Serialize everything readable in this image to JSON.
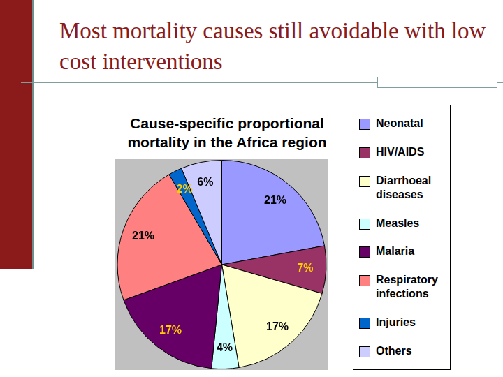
{
  "header": {
    "title": "Most mortality causes still avoidable with low cost interventions"
  },
  "chart_data": {
    "type": "pie",
    "title": "Cause-specific proportional mortality in the Africa region",
    "categories": [
      "Neonatal",
      "HIV/AIDS",
      "Diarrhoeal diseases",
      "Measles",
      "Malaria",
      "Respiratory infections",
      "Injuries",
      "Others"
    ],
    "values": [
      21,
      7,
      17,
      4,
      17,
      21,
      2,
      6
    ],
    "value_labels": [
      "21%",
      "7%",
      "17%",
      "4%",
      "17%",
      "21%",
      "2%",
      "6%"
    ],
    "colors": [
      "#9999ff",
      "#993366",
      "#ffffcc",
      "#ccffff",
      "#660066",
      "#ff8080",
      "#0066cc",
      "#ccccff"
    ],
    "data_labels": true,
    "legend": "right"
  }
}
